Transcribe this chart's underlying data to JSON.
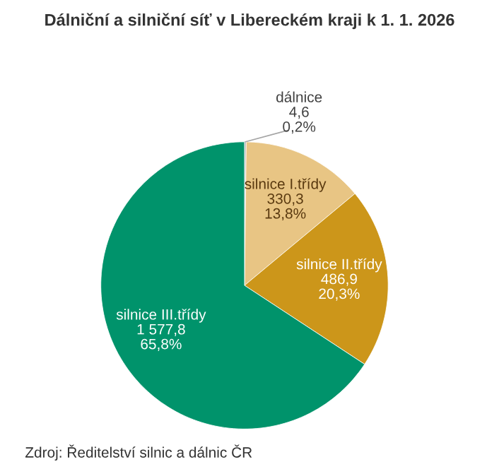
{
  "chart_data": {
    "type": "pie",
    "title": "Dálniční a silniční síť v Libereckém kraji k 1. 1. 2026",
    "categories": [
      "dálnice",
      "silnice I.třídy",
      "silnice II.třídy",
      "silnice III.třídy"
    ],
    "values": [
      4.6,
      330.3,
      486.9,
      1577.8
    ],
    "colors": [
      "#a5a5a5",
      "#e8c584",
      "#cc961a",
      "#00936b"
    ],
    "value_labels": [
      "4,6\n0,2%",
      "330,3\n13,8%",
      "486,9\n20,3%",
      "1 577,8\n65,8%"
    ],
    "annotations": [
      "Zdroj: Ředitelství silnic a dálnic ČR"
    ],
    "legend": false
  }
}
